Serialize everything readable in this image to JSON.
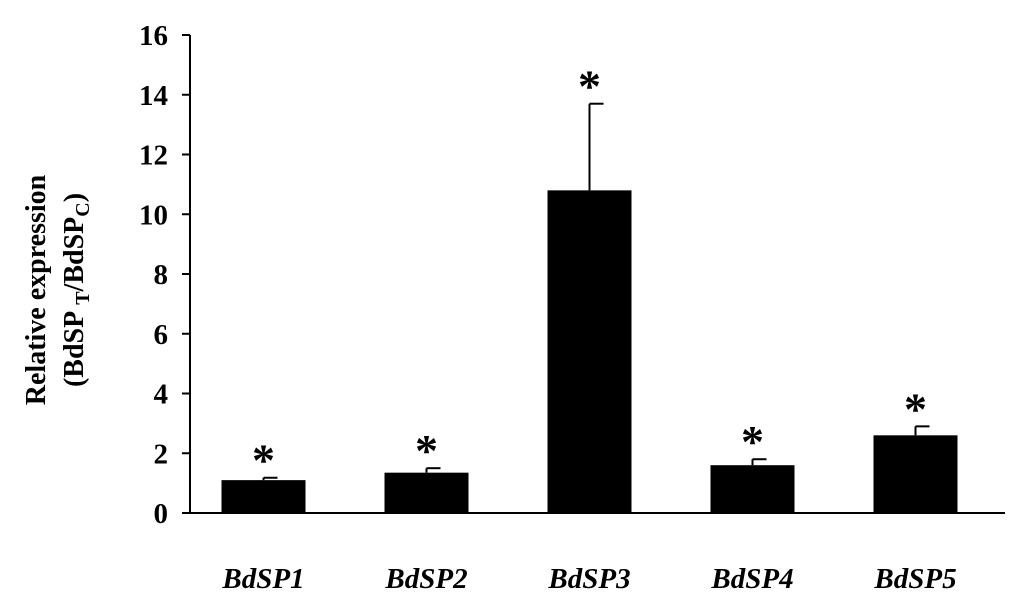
{
  "chart_data": {
    "type": "bar",
    "categories": [
      "BdSP1",
      "BdSP2",
      "BdSP3",
      "BdSP4",
      "BdSP5"
    ],
    "series": [
      {
        "values": [
          1.1,
          1.35,
          10.8,
          1.6,
          2.6
        ],
        "errors": [
          0.08,
          0.15,
          2.9,
          0.2,
          0.3
        ]
      }
    ],
    "significance": [
      "*",
      "*",
      "*",
      "*",
      "*"
    ],
    "ylabel": {
      "line1": "Relative expression",
      "line2_prefix": "(BdSP",
      "sub_t": "T",
      "middle": "/BdSP",
      "sub_c": "C",
      "suffix": ")"
    },
    "ylim": [
      0,
      16
    ],
    "yticks": [
      0,
      2,
      4,
      6,
      8,
      10,
      12,
      14,
      16
    ],
    "colors": {
      "bar": "#000000",
      "axis": "#000000"
    },
    "grid": false,
    "legend": "none"
  }
}
